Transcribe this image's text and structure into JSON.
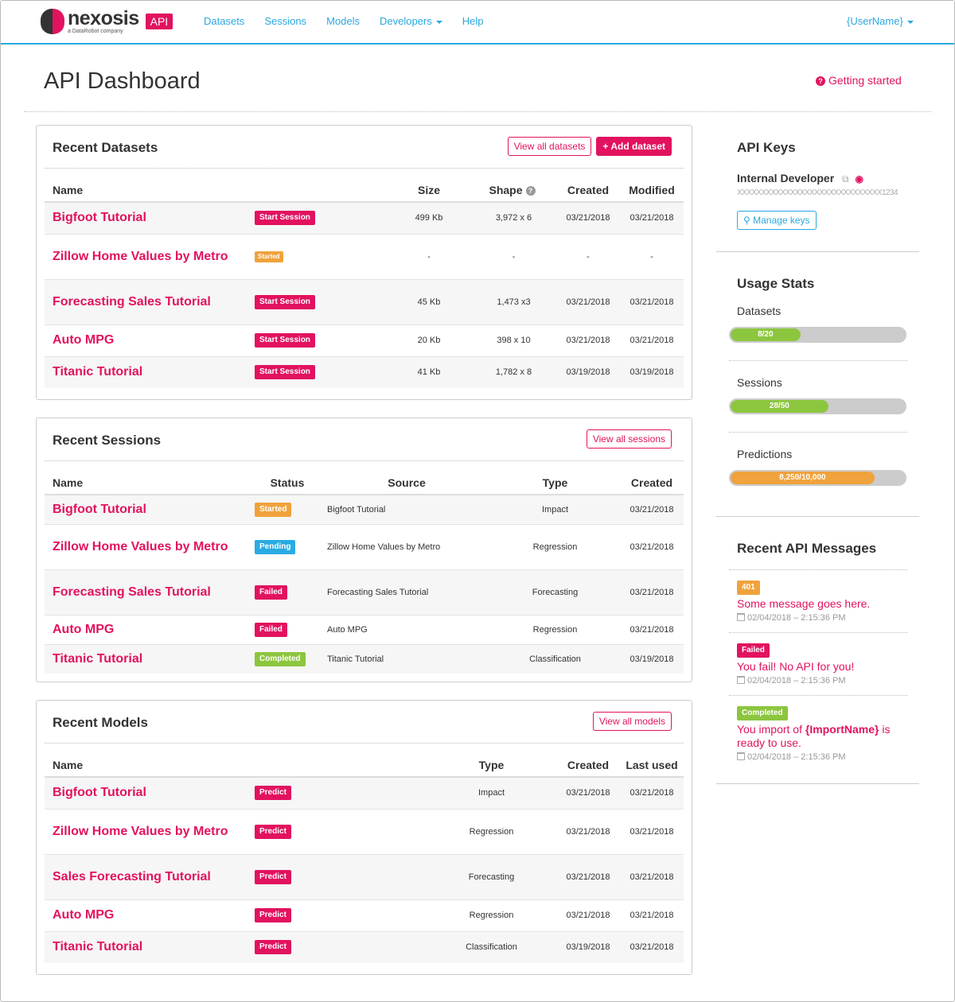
{
  "nav": {
    "brand": "nexosis",
    "brand_sub": "a DataRobot company",
    "api_badge": "API",
    "links": [
      "Datasets",
      "Sessions",
      "Models",
      "Developers",
      "Help"
    ],
    "user": "{UserName}"
  },
  "page": {
    "title": "API Dashboard",
    "getting_started": "Getting started"
  },
  "colors": {
    "accent": "#e2125f",
    "link": "#29a8e0",
    "started": "#f0a23c",
    "pending": "#29abe2",
    "failed": "#e2125f",
    "completed": "#8cc63f"
  },
  "datasets": {
    "title": "Recent Datasets",
    "view_all": "View all datasets",
    "add": "+ Add dataset",
    "headers": [
      "Name",
      "",
      "Size",
      "Shape",
      "Created",
      "Modified"
    ],
    "rows": [
      {
        "name": "Bigfoot Tutorial",
        "badge": "Start Session",
        "badge_color": "#e2125f",
        "size": "499 Kb",
        "shape": "3,972 x 6",
        "created": "03/21/2018",
        "modified": "03/21/2018"
      },
      {
        "name": "Zillow Home Values by Metro",
        "badge": "Started",
        "badge_color": "#f0a23c",
        "size": "-",
        "shape": "-",
        "created": "-",
        "modified": "-"
      },
      {
        "name": "Forecasting Sales Tutorial",
        "badge": "Start Session",
        "badge_color": "#e2125f",
        "size": "45 Kb",
        "shape": "1,473 x3",
        "created": "03/21/2018",
        "modified": "03/21/2018"
      },
      {
        "name": "Auto MPG",
        "badge": "Start Session",
        "badge_color": "#e2125f",
        "size": "20 Kb",
        "shape": "398 x 10",
        "created": "03/21/2018",
        "modified": "03/21/2018"
      },
      {
        "name": "Titanic Tutorial",
        "badge": "Start Session",
        "badge_color": "#e2125f",
        "size": "41 Kb",
        "shape": "1,782 x 8",
        "created": "03/19/2018",
        "modified": "03/19/2018"
      }
    ]
  },
  "sessions": {
    "title": "Recent Sessions",
    "view_all": "View all sessions",
    "headers": [
      "Name",
      "Status",
      "Source",
      "Type",
      "Created"
    ],
    "rows": [
      {
        "name": "Bigfoot Tutorial",
        "status": "Started",
        "status_color": "#f0a23c",
        "source": "Bigfoot Tutorial",
        "type": "Impact",
        "created": "03/21/2018"
      },
      {
        "name": "Zillow Home Values by Metro",
        "status": "Pending",
        "status_color": "#29abe2",
        "source": "Zillow Home Values by Metro",
        "type": "Regression",
        "created": "03/21/2018"
      },
      {
        "name": "Forecasting Sales Tutorial",
        "status": "Failed",
        "status_color": "#e2125f",
        "source": "Forecasting Sales Tutorial",
        "type": "Forecasting",
        "created": "03/21/2018"
      },
      {
        "name": "Auto MPG",
        "status": "Failed",
        "status_color": "#e2125f",
        "source": "Auto MPG",
        "type": "Regression",
        "created": "03/21/2018"
      },
      {
        "name": "Titanic Tutorial",
        "status": "Completed",
        "status_color": "#8cc63f",
        "source": "Titanic Tutorial",
        "type": "Classification",
        "created": "03/19/2018"
      }
    ]
  },
  "models": {
    "title": "Recent Models",
    "view_all": "View all models",
    "headers": [
      "Name",
      "",
      "Type",
      "Created",
      "Last used"
    ],
    "rows": [
      {
        "name": "Bigfoot Tutorial",
        "badge": "Predict",
        "type": "Impact",
        "created": "03/21/2018",
        "last_used": "03/21/2018"
      },
      {
        "name": "Zillow Home Values by Metro",
        "badge": "Predict",
        "type": "Regression",
        "created": "03/21/2018",
        "last_used": "03/21/2018"
      },
      {
        "name": "Sales Forecasting Tutorial",
        "badge": "Predict",
        "type": "Forecasting",
        "created": "03/21/2018",
        "last_used": "03/21/2018"
      },
      {
        "name": "Auto MPG",
        "badge": "Predict",
        "type": "Regression",
        "created": "03/21/2018",
        "last_used": "03/21/2018"
      },
      {
        "name": "Titanic Tutorial",
        "badge": "Predict",
        "type": "Classification",
        "created": "03/19/2018",
        "last_used": "03/21/2018"
      }
    ]
  },
  "api_keys": {
    "title": "API Keys",
    "key_name": "Internal Developer",
    "key_value": "XXXXXXXXXXXXXXXXXXXXXXXXXXXXXX1234",
    "manage": "Manage keys"
  },
  "usage": {
    "title": "Usage Stats",
    "items": [
      {
        "label": "Datasets",
        "text": "8/20",
        "fraction": 0.4,
        "color": "#8cc63f"
      },
      {
        "label": "Sessions",
        "text": "28/50",
        "fraction": 0.56,
        "color": "#8cc63f"
      },
      {
        "label": "Predictions",
        "text": "8,250/10,000",
        "fraction": 0.825,
        "color": "#f0a23c"
      }
    ]
  },
  "messages": {
    "title": "Recent API Messages",
    "items": [
      {
        "badge": "401",
        "badge_color": "#f0a23c",
        "text": "Some message goes here.",
        "date": "02/04/2018 – 2:15:36 PM"
      },
      {
        "badge": "Failed",
        "badge_color": "#e2125f",
        "text": "You fail! No API for you!",
        "date": "02/04/2018 – 2:15:36 PM"
      },
      {
        "badge": "Completed",
        "badge_color": "#8cc63f",
        "text_pre": "You import of ",
        "text_bold": "{ImportName}",
        "text_post": " is ready to use.",
        "date": "02/04/2018 – 2:15:36 PM"
      }
    ]
  }
}
